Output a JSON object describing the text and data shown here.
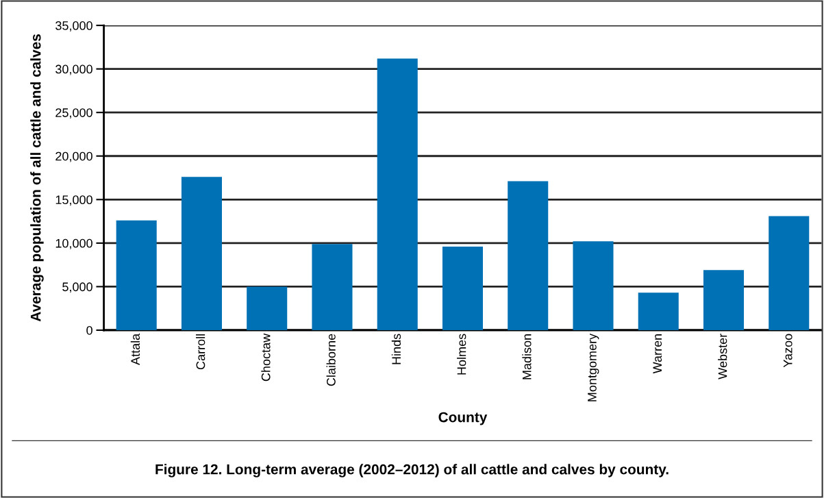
{
  "chart_data": {
    "type": "bar",
    "categories": [
      "Attala",
      "Carroll",
      "Choctaw",
      "Claiborne",
      "Hinds",
      "Holmes",
      "Madison",
      "Montgomery",
      "Warren",
      "Webster",
      "Yazoo"
    ],
    "values": [
      12600,
      17600,
      5000,
      9900,
      31200,
      9600,
      17100,
      10200,
      4300,
      6900,
      13100
    ],
    "color": "#0071b5",
    "xlabel": "County",
    "ylabel": "Average population of all cattle and calves",
    "ylim": [
      0,
      35000
    ],
    "yticks": [
      {
        "value": 0,
        "label": "0"
      },
      {
        "value": 5000,
        "label": "5,000"
      },
      {
        "value": 10000,
        "label": "10,000"
      },
      {
        "value": 15000,
        "label": "15,000"
      },
      {
        "value": 20000,
        "label": "20,000"
      },
      {
        "value": 25000,
        "label": "25,000"
      },
      {
        "value": 30000,
        "label": "30,000"
      },
      {
        "value": 35000,
        "label": "35,000"
      }
    ],
    "grid": "y",
    "annotations": [
      "Figure 12. Long-term average (2002–2012) of all cattle and calves by county."
    ]
  }
}
